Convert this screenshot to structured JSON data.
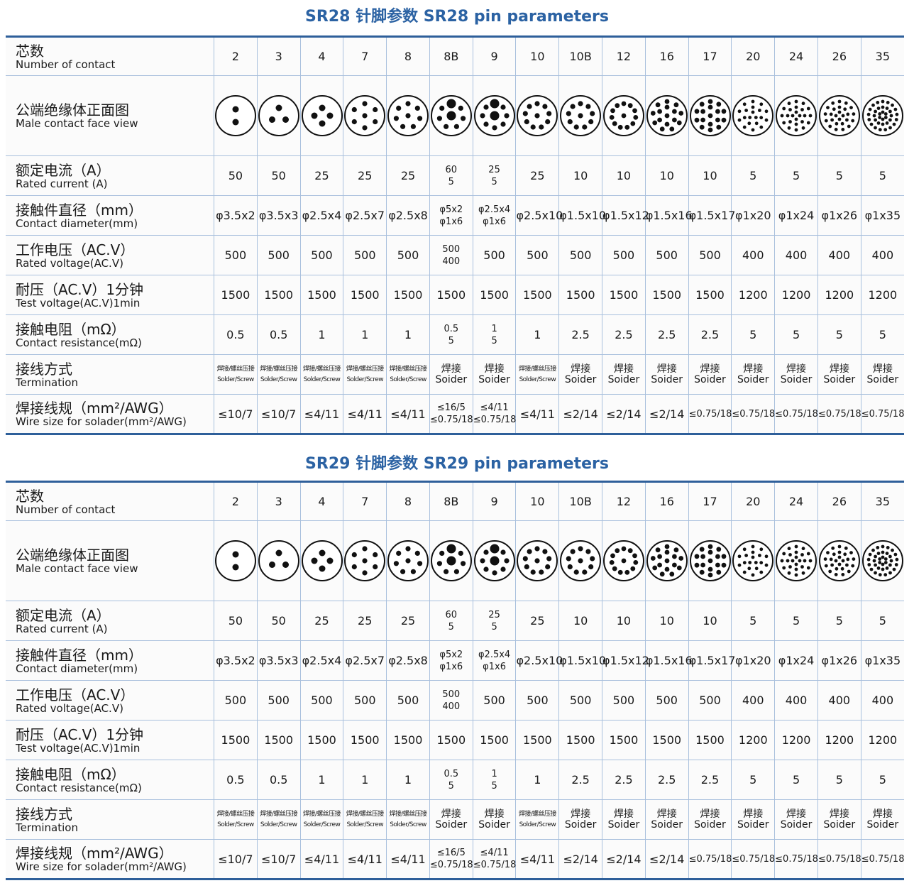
{
  "colors": {
    "title": "#2b62a3",
    "border": "#2e5f9a",
    "grid": "#a9c0dd"
  },
  "tables": [
    {
      "title": "SR28 针脚参数 SR28 pin parameters"
    },
    {
      "title": "SR29 针脚参数 SR29 pin parameters"
    }
  ],
  "rows": [
    {
      "zh": "芯数",
      "en": "Number of contact",
      "values": [
        "2",
        "3",
        "4",
        "7",
        "8",
        "8B",
        "9",
        "10",
        "10B",
        "12",
        "16",
        "17",
        "20",
        "24",
        "26",
        "35"
      ]
    },
    {
      "zh": "公端绝缘体正面图",
      "en": "Male contact face view",
      "icon": "contact-face-diagram"
    },
    {
      "zh": "额定电流（A）",
      "en": "Rated current (A)",
      "values": [
        "50",
        "50",
        "25",
        "25",
        "25",
        "60\n5",
        "25\n5",
        "25",
        "10",
        "10",
        "10",
        "10",
        "5",
        "5",
        "5",
        "5"
      ]
    },
    {
      "zh": "接触件直径（mm）",
      "en": "Contact diameter(mm)",
      "values": [
        "φ3.5x2",
        "φ3.5x3",
        "φ2.5x4",
        "φ2.5x7",
        "φ2.5x8",
        "φ5x2\nφ1x6",
        "φ2.5x4\nφ1x6",
        "φ2.5x10",
        "φ1.5x10",
        "φ1.5x12",
        "φ1.5x16",
        "φ1.5x17",
        "φ1x20",
        "φ1x24",
        "φ1x26",
        "φ1x35"
      ]
    },
    {
      "zh": "工作电压（AC.V）",
      "en": "Rated voltage(AC.V)",
      "values": [
        "500",
        "500",
        "500",
        "500",
        "500",
        "500\n400",
        "500",
        "500",
        "500",
        "500",
        "500",
        "500",
        "400",
        "400",
        "400",
        "400"
      ]
    },
    {
      "zh": "耐压（AC.V）1分钟",
      "en": "Test voltage(AC.V)1min",
      "values": [
        "1500",
        "1500",
        "1500",
        "1500",
        "1500",
        "1500",
        "1500",
        "1500",
        "1500",
        "1500",
        "1500",
        "1500",
        "1200",
        "1200",
        "1200",
        "1200"
      ]
    },
    {
      "zh": "接触电阻（mΩ）",
      "en": "Contact resistance(mΩ)",
      "values": [
        "0.5",
        "0.5",
        "1",
        "1",
        "1",
        "0.5\n5",
        "1\n5",
        "1",
        "2.5",
        "2.5",
        "2.5",
        "2.5",
        "5",
        "5",
        "5",
        "5"
      ]
    },
    {
      "zh": "接线方式",
      "en": "Termination",
      "values": [
        "焊接/螺丝压接\nSolder/Screw",
        "焊接/螺丝压接\nSolder/Screw",
        "焊接/螺丝压接\nSolder/Screw",
        "焊接/螺丝压接\nSolder/Screw",
        "焊接/螺丝压接\nSolder/Screw",
        "焊接\nSoider",
        "焊接\nSoider",
        "焊接/螺丝压接\nSolder/Screw",
        "焊接\nSoider",
        "焊接\nSoider",
        "焊接\nSoider",
        "焊接\nSoider",
        "焊接\nSoider",
        "焊接\nSoider",
        "焊接\nSoider",
        "焊接\nSoider"
      ]
    },
    {
      "zh": "焊接线规（mm²/AWG）",
      "en": "Wire size for solader(mm²/AWG)",
      "values": [
        "≤10/7",
        "≤10/7",
        "≤4/11",
        "≤4/11",
        "≤4/11",
        "≤16/5\n≤0.75/18",
        "≤4/11\n≤0.75/18",
        "≤4/11",
        "≤2/14",
        "≤2/14",
        "≤2/14",
        "≤0.75/18",
        "≤0.75/18",
        "≤0.75/18",
        "≤0.75/18",
        "≤0.75/18"
      ]
    }
  ]
}
